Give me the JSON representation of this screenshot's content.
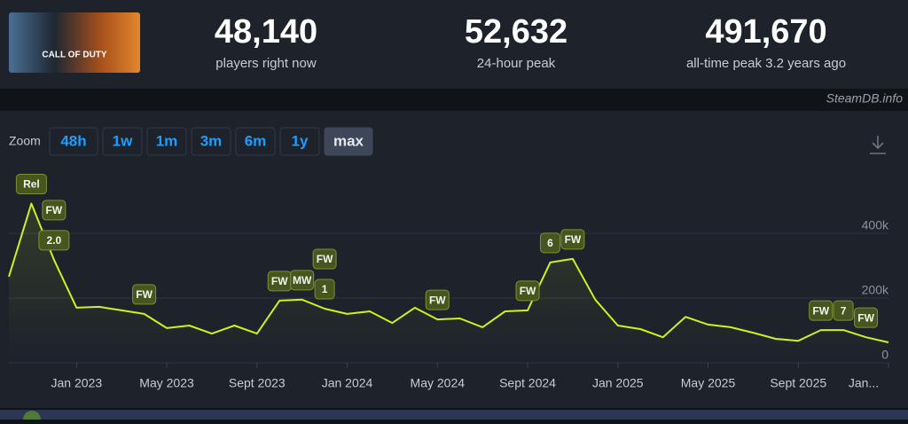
{
  "header": {
    "image_caption": "CALL OF DUTY",
    "stats": [
      {
        "value": "48,140",
        "label": "players right now"
      },
      {
        "value": "52,632",
        "label": "24-hour peak"
      },
      {
        "value": "491,670",
        "label": "all-time peak 3.2 years ago"
      }
    ]
  },
  "source": "SteamDB.info",
  "zoom": {
    "label": "Zoom",
    "options": [
      "48h",
      "1w",
      "1m",
      "3m",
      "6m",
      "1y",
      "max"
    ],
    "active": "max"
  },
  "chart_data": {
    "type": "line",
    "x": [
      "2022-10",
      "2022-11",
      "2022-12",
      "2023-01",
      "2023-02",
      "2023-03",
      "2023-04",
      "2023-05",
      "2023-06",
      "2023-07",
      "2023-08",
      "2023-09",
      "2023-10",
      "2023-11",
      "2023-12",
      "2024-01",
      "2024-02",
      "2024-03",
      "2024-04",
      "2024-05",
      "2024-06",
      "2024-07",
      "2024-08",
      "2024-09",
      "2024-10",
      "2024-11",
      "2024-12",
      "2025-01",
      "2025-02",
      "2025-03",
      "2025-04",
      "2025-05",
      "2025-06",
      "2025-07",
      "2025-08",
      "2025-09",
      "2025-10",
      "2025-11",
      "2025-12",
      "2026-01"
    ],
    "values": [
      266000,
      491670,
      318000,
      170000,
      173000,
      162000,
      151000,
      107000,
      115000,
      90000,
      115000,
      90000,
      192000,
      195000,
      167000,
      151000,
      159000,
      123000,
      170000,
      134000,
      137000,
      110000,
      159000,
      162000,
      310000,
      321000,
      195000,
      115000,
      104000,
      79000,
      142000,
      118000,
      110000,
      93000,
      74000,
      68000,
      101000,
      101000,
      79000,
      63000
    ],
    "color": "#cdf21e",
    "xlim": [
      "2022-10",
      "2026-01"
    ],
    "xticks": [
      {
        "value": "2023-01",
        "label": "Jan 2023"
      },
      {
        "value": "2023-05",
        "label": "May 2023"
      },
      {
        "value": "2023-09",
        "label": "Sept 2023"
      },
      {
        "value": "2024-01",
        "label": "Jan 2024"
      },
      {
        "value": "2024-05",
        "label": "May 2024"
      },
      {
        "value": "2024-09",
        "label": "Sept 2024"
      },
      {
        "value": "2025-01",
        "label": "Jan 2025"
      },
      {
        "value": "2025-05",
        "label": "May 2025"
      },
      {
        "value": "2025-09",
        "label": "Sept 2025"
      },
      {
        "value": "2026-01",
        "label": "Jan..."
      }
    ],
    "ylim": [
      0,
      600000
    ],
    "yticks": [
      0,
      {
        "value": 200000,
        "label": "200k"
      },
      {
        "value": 400000,
        "label": "400k"
      }
    ],
    "grid": true,
    "annotations": [
      {
        "label": "Rel",
        "x": "2022-11"
      },
      {
        "label": "2.0",
        "x": "2022-12"
      },
      {
        "label": "FW",
        "x": "2022-12"
      },
      {
        "label": "FW",
        "x": "2023-04"
      },
      {
        "label": "FW",
        "x": "2023-10"
      },
      {
        "label": "MW",
        "x": "2023-11"
      },
      {
        "label": "1",
        "x": "2023-12"
      },
      {
        "label": "FW",
        "x": "2023-12"
      },
      {
        "label": "FW",
        "x": "2024-05"
      },
      {
        "label": "FW",
        "x": "2024-09"
      },
      {
        "label": "6",
        "x": "2024-10"
      },
      {
        "label": "FW",
        "x": "2024-11"
      },
      {
        "label": "FW",
        "x": "2025-10"
      },
      {
        "label": "7",
        "x": "2025-11"
      },
      {
        "label": "FW",
        "x": "2025-12"
      }
    ]
  }
}
